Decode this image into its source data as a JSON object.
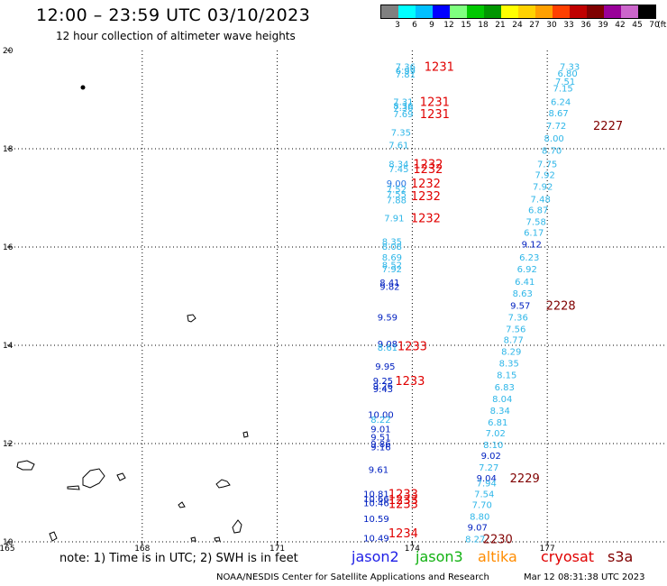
{
  "title": "12:00 – 23:59 UTC 03/10/2023",
  "subtitle": "12 hour collection of altimeter wave heights",
  "legend": {
    "colors": [
      "#808080",
      "#00ffff",
      "#00c0ff",
      "#0000ff",
      "#7fff7f",
      "#00c800",
      "#009600",
      "#ffff00",
      "#ffd200",
      "#ffa000",
      "#ff4000",
      "#c00000",
      "#7f0000",
      "#990099",
      "#cc66cc",
      "#000000"
    ],
    "labels": [
      "3",
      "6",
      "9",
      "12",
      "15",
      "18",
      "21",
      "24",
      "27",
      "30",
      "33",
      "36",
      "39",
      "42",
      "45",
      "70"
    ],
    "unit": "(ft)"
  },
  "axes": {
    "lon_labels": [
      "165",
      "168",
      "171",
      "174",
      "177"
    ],
    "lat_labels": [
      "20",
      "18",
      "16",
      "14",
      "12",
      "10"
    ]
  },
  "chart_data": {
    "type": "scatter",
    "xlabel": "",
    "ylabel": "",
    "xlim": [
      165,
      179.6
    ],
    "ylim": [
      10,
      20
    ],
    "points": [
      {
        "lon": 173.85,
        "lat": 19.68,
        "v": "7.36",
        "c": "#2eb6e8"
      },
      {
        "lon": 173.85,
        "lat": 19.6,
        "v": "6.99",
        "c": "#2eb6e8"
      },
      {
        "lon": 173.85,
        "lat": 19.52,
        "v": "7.81",
        "c": "#2eb6e8"
      },
      {
        "lon": 173.8,
        "lat": 18.96,
        "v": "7.31",
        "c": "#2eb6e8"
      },
      {
        "lon": 173.8,
        "lat": 18.88,
        "v": "8.36",
        "c": "#2eb6e8"
      },
      {
        "lon": 173.8,
        "lat": 18.84,
        "v": "7.36",
        "c": "#2eb6e8"
      },
      {
        "lon": 173.8,
        "lat": 18.72,
        "v": "7.69",
        "c": "#2eb6e8"
      },
      {
        "lon": 173.75,
        "lat": 18.34,
        "v": "7.35",
        "c": "#2eb6e8"
      },
      {
        "lon": 173.7,
        "lat": 18.08,
        "v": "7.61",
        "c": "#2eb6e8"
      },
      {
        "lon": 173.7,
        "lat": 17.7,
        "v": "8.34",
        "c": "#2eb6e8"
      },
      {
        "lon": 173.7,
        "lat": 17.6,
        "v": "7.45",
        "c": "#2eb6e8"
      },
      {
        "lon": 173.65,
        "lat": 17.3,
        "v": "9.00",
        "c": "#2070e0"
      },
      {
        "lon": 173.65,
        "lat": 17.18,
        "v": "7.52",
        "c": "#2eb6e8"
      },
      {
        "lon": 173.65,
        "lat": 17.08,
        "v": "7.55",
        "c": "#2eb6e8"
      },
      {
        "lon": 173.65,
        "lat": 16.96,
        "v": "7.88",
        "c": "#2eb6e8"
      },
      {
        "lon": 173.6,
        "lat": 16.6,
        "v": "7.91",
        "c": "#2eb6e8"
      },
      {
        "lon": 173.55,
        "lat": 16.12,
        "v": "8.35",
        "c": "#2eb6e8"
      },
      {
        "lon": 173.55,
        "lat": 16.02,
        "v": "8.08",
        "c": "#2eb6e8"
      },
      {
        "lon": 173.55,
        "lat": 15.8,
        "v": "8.69",
        "c": "#2eb6e8"
      },
      {
        "lon": 173.55,
        "lat": 15.64,
        "v": "8.52",
        "c": "#2eb6e8"
      },
      {
        "lon": 173.55,
        "lat": 15.56,
        "v": "7.92",
        "c": "#2eb6e8"
      },
      {
        "lon": 173.5,
        "lat": 15.28,
        "v": "8.41",
        "c": "#0020c0"
      },
      {
        "lon": 173.5,
        "lat": 15.2,
        "v": "9.82",
        "c": "#0020c0"
      },
      {
        "lon": 173.45,
        "lat": 14.58,
        "v": "9.59",
        "c": "#0020c0"
      },
      {
        "lon": 173.45,
        "lat": 14.04,
        "v": "9.08",
        "c": "#0020c0"
      },
      {
        "lon": 173.45,
        "lat": 13.96,
        "v": "8.61",
        "c": "#2eb6e8"
      },
      {
        "lon": 173.4,
        "lat": 13.58,
        "v": "9.95",
        "c": "#0020c0"
      },
      {
        "lon": 173.35,
        "lat": 13.28,
        "v": "9.25",
        "c": "#0020c0"
      },
      {
        "lon": 173.35,
        "lat": 13.18,
        "v": "9.26",
        "c": "#0020c0"
      },
      {
        "lon": 173.35,
        "lat": 13.12,
        "v": "9.43",
        "c": "#0020c0"
      },
      {
        "lon": 173.3,
        "lat": 12.6,
        "v": "10.00",
        "c": "#0020c0"
      },
      {
        "lon": 173.3,
        "lat": 12.5,
        "v": "8.22",
        "c": "#2eb6e8"
      },
      {
        "lon": 173.3,
        "lat": 12.3,
        "v": "9.01",
        "c": "#0020c0"
      },
      {
        "lon": 173.3,
        "lat": 12.14,
        "v": "9.51",
        "c": "#0020c0"
      },
      {
        "lon": 173.3,
        "lat": 12.0,
        "v": "9.86",
        "c": "#0020c0"
      },
      {
        "lon": 173.3,
        "lat": 11.94,
        "v": "9.16",
        "c": "#0020c0"
      },
      {
        "lon": 173.25,
        "lat": 11.48,
        "v": "9.61",
        "c": "#0020c0"
      },
      {
        "lon": 173.2,
        "lat": 10.98,
        "v": "10.81",
        "c": "#0020c0"
      },
      {
        "lon": 173.2,
        "lat": 10.88,
        "v": "10.66",
        "c": "#0020c0"
      },
      {
        "lon": 173.2,
        "lat": 10.8,
        "v": "10.46",
        "c": "#0020c0"
      },
      {
        "lon": 173.2,
        "lat": 10.48,
        "v": "10.59",
        "c": "#0020c0"
      },
      {
        "lon": 173.2,
        "lat": 10.08,
        "v": "10.49",
        "c": "#0020c0"
      },
      {
        "lon": 177.5,
        "lat": 19.68,
        "v": "7.33",
        "c": "#2eb6e8"
      },
      {
        "lon": 177.45,
        "lat": 19.54,
        "v": "6.80",
        "c": "#2eb6e8"
      },
      {
        "lon": 177.4,
        "lat": 19.38,
        "v": "7.51",
        "c": "#2eb6e8"
      },
      {
        "lon": 177.35,
        "lat": 19.24,
        "v": "7.15",
        "c": "#2eb6e8"
      },
      {
        "lon": 177.3,
        "lat": 18.96,
        "v": "6.24",
        "c": "#2eb6e8"
      },
      {
        "lon": 177.25,
        "lat": 18.73,
        "v": "8.67",
        "c": "#2eb6e8"
      },
      {
        "lon": 177.2,
        "lat": 18.48,
        "v": "7.72",
        "c": "#2eb6e8"
      },
      {
        "lon": 177.15,
        "lat": 18.22,
        "v": "8.00",
        "c": "#2eb6e8"
      },
      {
        "lon": 177.1,
        "lat": 17.97,
        "v": "8.70",
        "c": "#2eb6e8"
      },
      {
        "lon": 177.0,
        "lat": 17.7,
        "v": "7.75",
        "c": "#2eb6e8"
      },
      {
        "lon": 176.95,
        "lat": 17.48,
        "v": "7.92",
        "c": "#2eb6e8"
      },
      {
        "lon": 176.9,
        "lat": 17.24,
        "v": "7.92",
        "c": "#2eb6e8"
      },
      {
        "lon": 176.85,
        "lat": 16.98,
        "v": "7.48",
        "c": "#2eb6e8"
      },
      {
        "lon": 176.8,
        "lat": 16.76,
        "v": "6.87",
        "c": "#2eb6e8"
      },
      {
        "lon": 176.75,
        "lat": 16.52,
        "v": "7.58",
        "c": "#2eb6e8"
      },
      {
        "lon": 176.7,
        "lat": 16.3,
        "v": "6.17",
        "c": "#2eb6e8"
      },
      {
        "lon": 176.65,
        "lat": 16.06,
        "v": "9.12",
        "c": "#0020c0"
      },
      {
        "lon": 176.6,
        "lat": 15.8,
        "v": "6.23",
        "c": "#2eb6e8"
      },
      {
        "lon": 176.55,
        "lat": 15.56,
        "v": "6.92",
        "c": "#2eb6e8"
      },
      {
        "lon": 176.5,
        "lat": 15.3,
        "v": "6.41",
        "c": "#2eb6e8"
      },
      {
        "lon": 176.45,
        "lat": 15.06,
        "v": "8.63",
        "c": "#2eb6e8"
      },
      {
        "lon": 176.4,
        "lat": 14.82,
        "v": "9.57",
        "c": "#0020c0"
      },
      {
        "lon": 176.35,
        "lat": 14.58,
        "v": "7.36",
        "c": "#2eb6e8"
      },
      {
        "lon": 176.3,
        "lat": 14.34,
        "v": "7.56",
        "c": "#2eb6e8"
      },
      {
        "lon": 176.25,
        "lat": 14.12,
        "v": "8.77",
        "c": "#2eb6e8"
      },
      {
        "lon": 176.2,
        "lat": 13.88,
        "v": "8.29",
        "c": "#2eb6e8"
      },
      {
        "lon": 176.15,
        "lat": 13.64,
        "v": "8.35",
        "c": "#2eb6e8"
      },
      {
        "lon": 176.1,
        "lat": 13.4,
        "v": "8.15",
        "c": "#2eb6e8"
      },
      {
        "lon": 176.05,
        "lat": 13.16,
        "v": "6.83",
        "c": "#2eb6e8"
      },
      {
        "lon": 176.0,
        "lat": 12.92,
        "v": "8.04",
        "c": "#2eb6e8"
      },
      {
        "lon": 175.95,
        "lat": 12.68,
        "v": "8.34",
        "c": "#2eb6e8"
      },
      {
        "lon": 175.9,
        "lat": 12.44,
        "v": "6.81",
        "c": "#2eb6e8"
      },
      {
        "lon": 175.85,
        "lat": 12.22,
        "v": "7.02",
        "c": "#2eb6e8"
      },
      {
        "lon": 175.8,
        "lat": 11.98,
        "v": "8.10",
        "c": "#2eb6e8"
      },
      {
        "lon": 175.75,
        "lat": 11.76,
        "v": "9.02",
        "c": "#0020c0"
      },
      {
        "lon": 175.7,
        "lat": 11.52,
        "v": "7.27",
        "c": "#2eb6e8"
      },
      {
        "lon": 175.65,
        "lat": 11.3,
        "v": "9.04",
        "c": "#0020c0"
      },
      {
        "lon": 175.65,
        "lat": 11.2,
        "v": "7.94",
        "c": "#2eb6e8"
      },
      {
        "lon": 175.6,
        "lat": 10.98,
        "v": "7.54",
        "c": "#2eb6e8"
      },
      {
        "lon": 175.55,
        "lat": 10.76,
        "v": "7.70",
        "c": "#2eb6e8"
      },
      {
        "lon": 175.5,
        "lat": 10.52,
        "v": "8.80",
        "c": "#2eb6e8"
      },
      {
        "lon": 175.45,
        "lat": 10.3,
        "v": "9.07",
        "c": "#0020c0"
      },
      {
        "lon": 175.4,
        "lat": 10.06,
        "v": "8.27",
        "c": "#2eb6e8"
      }
    ],
    "times": [
      {
        "lon": 174.6,
        "lat": 19.68,
        "v": "1231",
        "c": "#e00000"
      },
      {
        "lon": 174.5,
        "lat": 18.96,
        "v": "1231",
        "c": "#e00000"
      },
      {
        "lon": 174.5,
        "lat": 18.72,
        "v": "1231",
        "c": "#e00000"
      },
      {
        "lon": 174.35,
        "lat": 17.7,
        "v": "1232",
        "c": "#e00000"
      },
      {
        "lon": 174.35,
        "lat": 17.6,
        "v": "1232",
        "c": "#e00000"
      },
      {
        "lon": 174.3,
        "lat": 17.3,
        "v": "1232",
        "c": "#e00000"
      },
      {
        "lon": 174.3,
        "lat": 17.05,
        "v": "1232",
        "c": "#e00000"
      },
      {
        "lon": 174.3,
        "lat": 16.6,
        "v": "1232",
        "c": "#e00000"
      },
      {
        "lon": 174.0,
        "lat": 13.99,
        "v": "1233",
        "c": "#e00000"
      },
      {
        "lon": 173.95,
        "lat": 13.28,
        "v": "1233",
        "c": "#e00000"
      },
      {
        "lon": 173.8,
        "lat": 10.98,
        "v": "1233",
        "c": "#e00000"
      },
      {
        "lon": 173.8,
        "lat": 10.86,
        "v": "1233",
        "c": "#e00000"
      },
      {
        "lon": 173.8,
        "lat": 10.78,
        "v": "1233",
        "c": "#e00000"
      },
      {
        "lon": 173.8,
        "lat": 10.18,
        "v": "1234",
        "c": "#e00000"
      },
      {
        "lon": 178.35,
        "lat": 18.48,
        "v": "2227",
        "c": "#800000"
      },
      {
        "lon": 177.3,
        "lat": 14.82,
        "v": "2228",
        "c": "#800000"
      },
      {
        "lon": 176.5,
        "lat": 11.3,
        "v": "2229",
        "c": "#800000"
      },
      {
        "lon": 175.9,
        "lat": 10.06,
        "v": "2230",
        "c": "#800000"
      }
    ]
  },
  "note": "note:  1) Time is in UTC; 2) SWH is in feet",
  "satellites": [
    {
      "name": "jason2",
      "color": "#1e1ee6"
    },
    {
      "name": "jason3",
      "color": "#11b111"
    },
    {
      "name": "altika",
      "color": "#ff8c00"
    },
    {
      "name": "cryosat",
      "color": "#e00000"
    },
    {
      "name": "s3a",
      "color": "#800000"
    }
  ],
  "footer_left": "NOAA/NESDIS Center for Satellite Applications and Research",
  "footer_right": "Mar 12 08:31:38 UTC 2023"
}
